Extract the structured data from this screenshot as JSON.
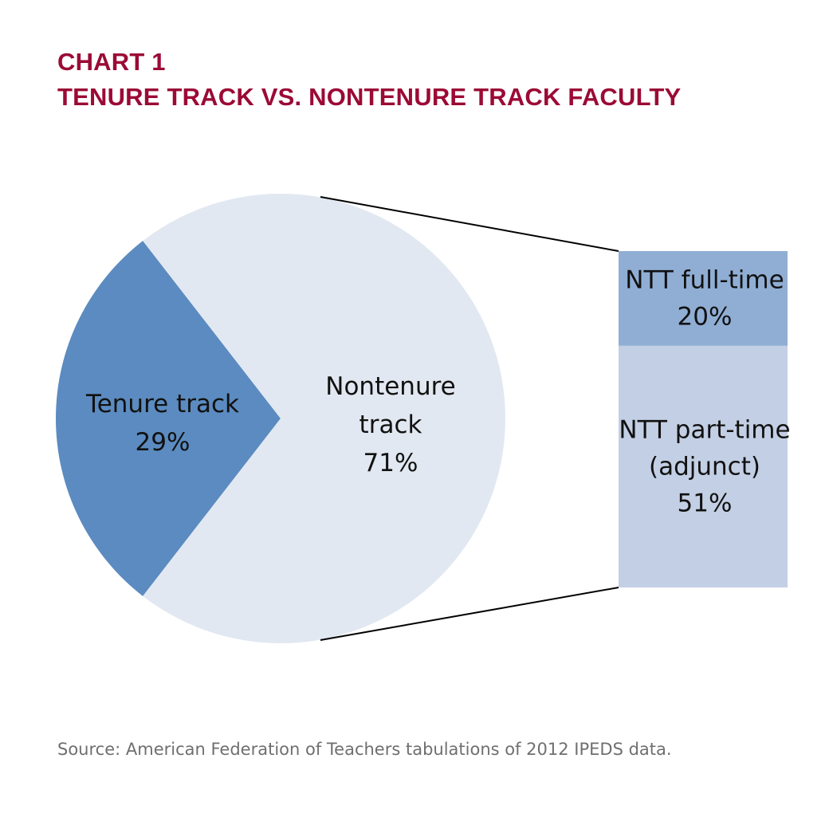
{
  "title_line1": "CHART 1",
  "title_line2": "TENURE TRACK VS. NONTENURE TRACK FACULTY",
  "source": "Source: American Federation of Teachers tabulations of 2012 IPEDS data.",
  "chart_data": {
    "type": "pie",
    "subtype": "bar-of-pie",
    "title": "TENURE TRACK VS. NONTENURE TRACK FACULTY",
    "slices": [
      {
        "label_lines": [
          "Tenure track"
        ],
        "pct_label": "29%",
        "value": 29,
        "color": "#5b8bc0"
      },
      {
        "label_lines": [
          "Nontenure",
          "track"
        ],
        "pct_label": "71%",
        "value": 71,
        "color": "#e2e8f1"
      }
    ],
    "breakdown": {
      "of_slice": "Nontenure track",
      "segments": [
        {
          "label_lines": [
            "NTT full-time"
          ],
          "pct_label": "20%",
          "value": 20,
          "color": "#90aed4"
        },
        {
          "label_lines": [
            "NTT part-time",
            "(adjunct)"
          ],
          "pct_label": "51%",
          "value": 51,
          "color": "#c3cfe4"
        }
      ]
    },
    "legend": "none"
  }
}
